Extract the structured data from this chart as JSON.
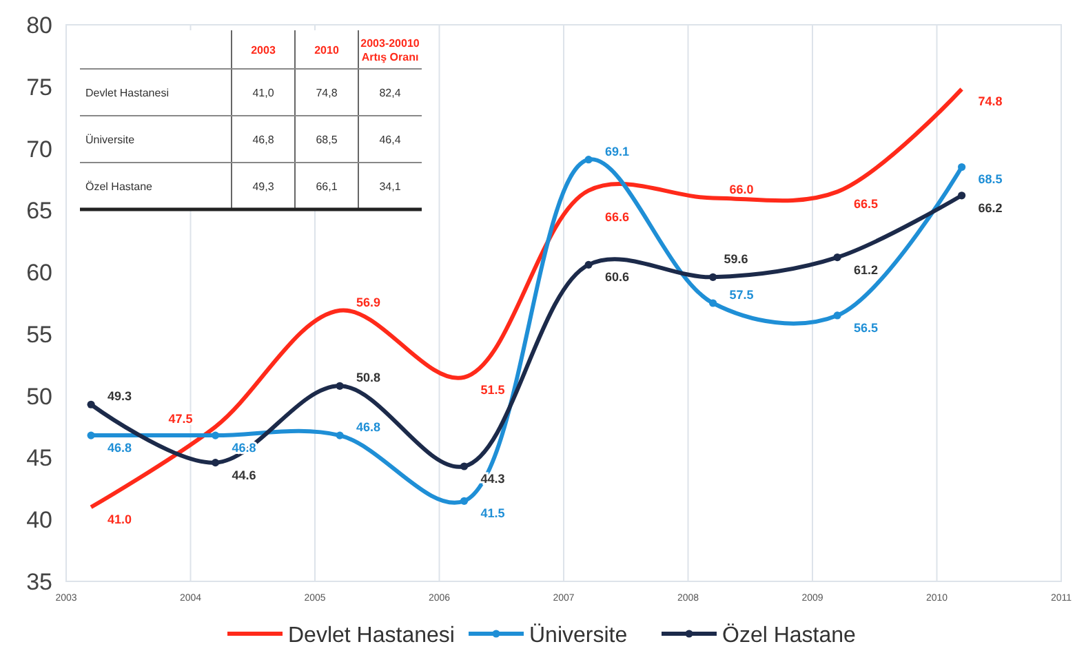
{
  "chart_data": {
    "type": "line",
    "x": [
      2003.2,
      2004.2,
      2005.2,
      2006.2,
      2007.2,
      2008.2,
      2009.2,
      2010.2
    ],
    "series": [
      {
        "name": "Devlet Hastanesi",
        "color": "#ff2a1a",
        "marker": "none",
        "values": [
          41.0,
          47.5,
          56.9,
          51.5,
          66.6,
          66.0,
          66.5,
          74.8
        ],
        "value_labels": [
          "41.0",
          "47.5",
          "56.9",
          "51.5",
          "66.6",
          "66.0",
          "66.5",
          "74.8"
        ]
      },
      {
        "name": "Üniversite",
        "color": "#1f8fd6",
        "marker": "circle",
        "values": [
          46.8,
          46.8,
          46.8,
          41.5,
          69.1,
          57.5,
          56.5,
          68.5
        ],
        "value_labels": [
          "46.8",
          "46.8",
          "46.8",
          "41.5",
          "69.1",
          "57.5",
          "56.5",
          "68.5"
        ]
      },
      {
        "name": "Özel Hastane",
        "color": "#1c2a4a",
        "marker": "circle",
        "values": [
          49.3,
          44.6,
          50.8,
          44.3,
          60.6,
          59.6,
          61.2,
          66.2
        ],
        "value_labels": [
          "49.3",
          "44.6",
          "50.8",
          "44.3",
          "60.6",
          "59.6",
          "61.2",
          "66.2"
        ]
      }
    ],
    "xlim": [
      2003,
      2011
    ],
    "xticks": [
      2003,
      2004,
      2005,
      2006,
      2007,
      2008,
      2009,
      2010,
      2011
    ],
    "ylim": [
      35,
      80
    ],
    "yticks": [
      35,
      40,
      45,
      50,
      55,
      60,
      65,
      70,
      75,
      80
    ],
    "grid": "x",
    "legend": "bottom",
    "line_style": "solid",
    "annotations": [
      "2003",
      "2010",
      "2003-20010 Artış Oranı",
      "Devlet Hastanesi",
      "41,0",
      "74,8",
      "82,4",
      "Üniversite",
      "46,8",
      "68,5",
      "46,4",
      "Özel Hastane",
      "49,3",
      "66,1",
      "34,1"
    ]
  }
}
